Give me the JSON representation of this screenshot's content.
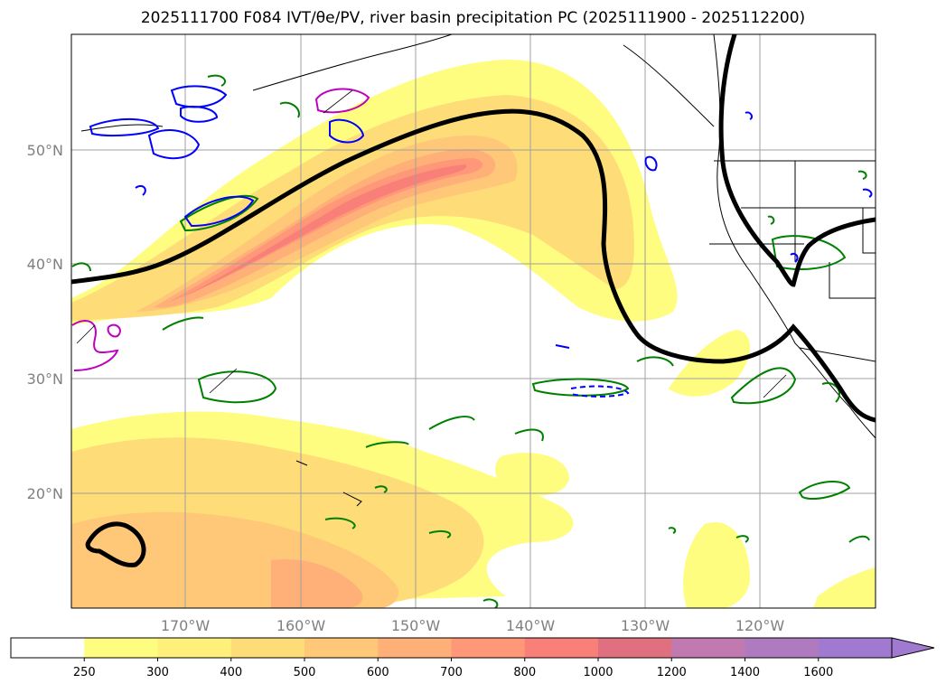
{
  "title": "2025111700 F084 IVT/θe/PV, river basin precipitation PC (2025111900 - 2025112200)",
  "map": {
    "lat_labels": [
      "50°N",
      "40°N",
      "30°N",
      "20°N"
    ],
    "lon_labels": [
      "170°W",
      "160°W",
      "150°W",
      "140°W",
      "130°W",
      "120°W"
    ]
  },
  "colorbar": {
    "ticks": [
      "250",
      "300",
      "400",
      "500",
      "600",
      "700",
      "800",
      "1000",
      "1200",
      "1400",
      "1600"
    ],
    "colors": [
      "#ffffff",
      "#fefd80",
      "#fef07a",
      "#fedc78",
      "#fec878",
      "#feb078",
      "#fe9878",
      "#f88078",
      "#e07080",
      "#c07ab0",
      "#b07ac0",
      "#a07ad0"
    ]
  }
}
